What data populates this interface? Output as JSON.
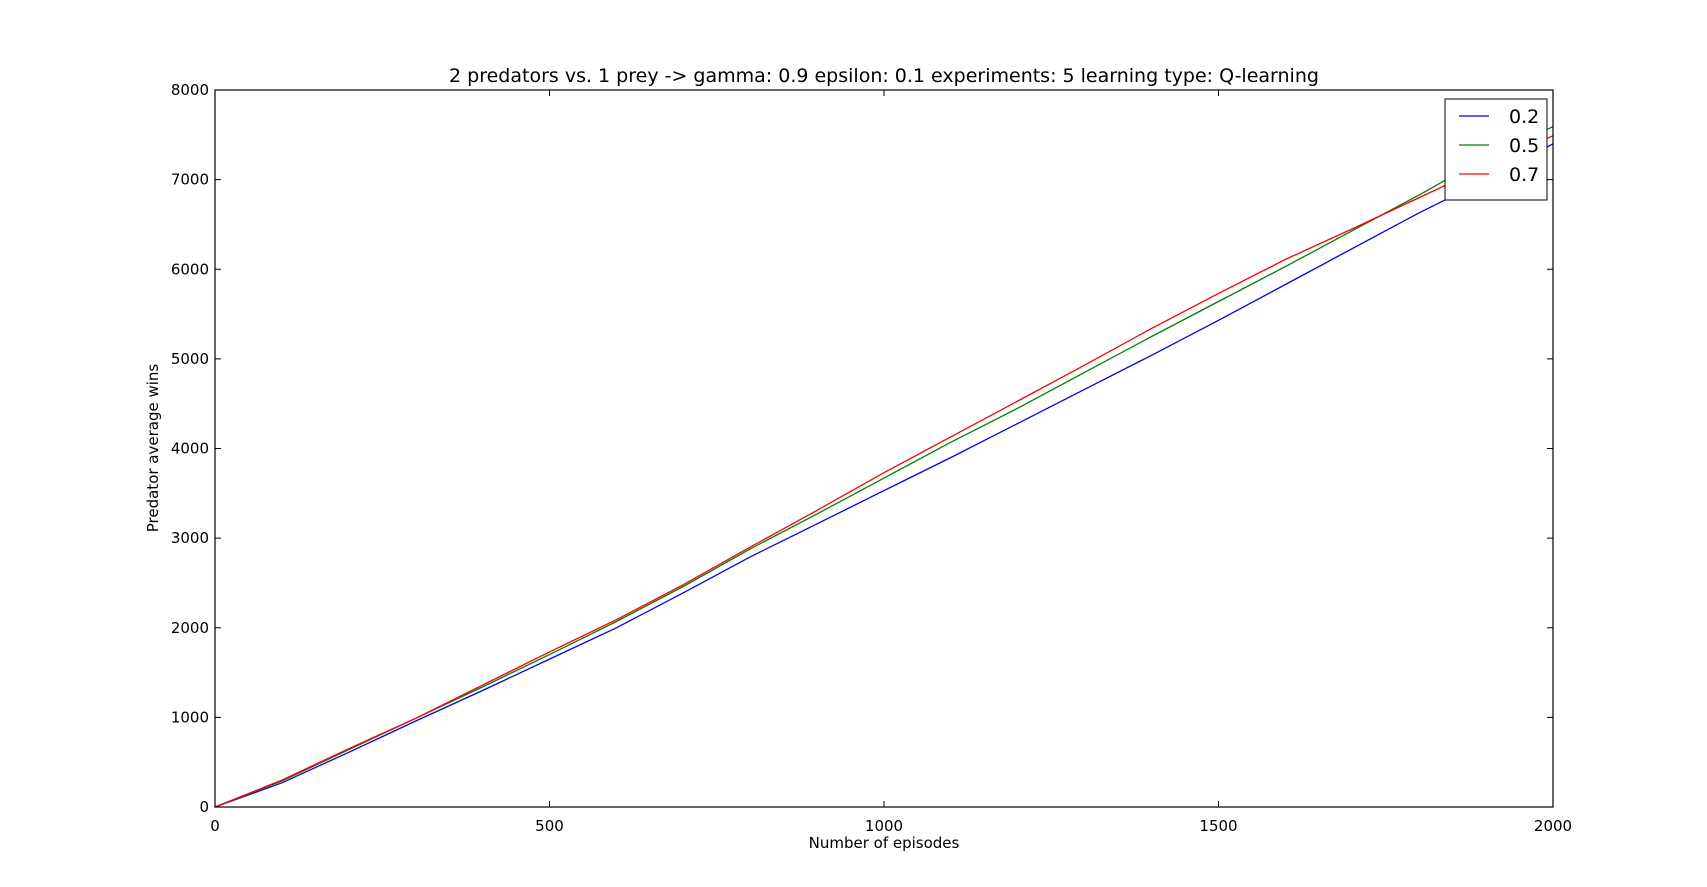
{
  "chart_data": {
    "type": "line",
    "title": "2 predators vs. 1 prey -> gamma: 0.9 epsilon: 0.1 experiments: 5 learning type: Q-learning",
    "xlabel": "Number of episodes",
    "ylabel": "Predator average wins",
    "xlim": [
      0,
      2000
    ],
    "ylim": [
      0,
      8000
    ],
    "xticks": [
      0,
      500,
      1000,
      1500,
      2000
    ],
    "yticks": [
      0,
      1000,
      2000,
      3000,
      4000,
      5000,
      6000,
      7000,
      8000
    ],
    "grid": false,
    "legend_position": "top-right",
    "x": [
      0,
      100,
      200,
      300,
      400,
      500,
      600,
      700,
      800,
      900,
      1000,
      1100,
      1200,
      1300,
      1400,
      1500,
      1600,
      1700,
      1800,
      1900,
      2000
    ],
    "series": [
      {
        "name": "0.2",
        "color": "#0000ff",
        "values": [
          0,
          270,
          610,
          960,
          1300,
          1650,
          2000,
          2390,
          2790,
          3160,
          3530,
          3900,
          4280,
          4660,
          5040,
          5430,
          5830,
          6230,
          6630,
          7000,
          7400
        ]
      },
      {
        "name": "0.5",
        "color": "#008000",
        "values": [
          0,
          290,
          640,
          990,
          1340,
          1700,
          2070,
          2460,
          2880,
          3270,
          3670,
          4070,
          4450,
          4850,
          5250,
          5640,
          6030,
          6430,
          6830,
          7250,
          7590
        ]
      },
      {
        "name": "0.7",
        "color": "#ff0000",
        "values": [
          0,
          300,
          650,
          990,
          1360,
          1730,
          2090,
          2480,
          2900,
          3310,
          3730,
          4130,
          4530,
          4930,
          5340,
          5730,
          6110,
          6450,
          6800,
          7150,
          7490
        ]
      }
    ]
  }
}
